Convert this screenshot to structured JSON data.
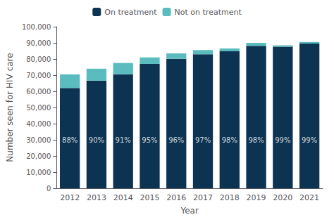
{
  "chart_data": {
    "type": "bar",
    "stacked": true,
    "categories": [
      "2012",
      "2013",
      "2014",
      "2015",
      "2016",
      "2017",
      "2018",
      "2019",
      "2020",
      "2021"
    ],
    "series": [
      {
        "name": "On treatment",
        "color": "#0d3352",
        "values": [
          62040,
          66600,
          70525,
          76950,
          80160,
          82935,
          84770,
          88200,
          87615,
          89595
        ]
      },
      {
        "name": "Not on treatment",
        "color": "#5bbcbf",
        "values": [
          8460,
          7400,
          7025,
          4050,
          3340,
          2565,
          1730,
          1800,
          885,
          905
        ]
      }
    ],
    "xlabel": "Year",
    "ylabel": "Number seen for HIV care",
    "ylim": [
      0,
      100000
    ],
    "yticks": [
      0,
      {
        "value": 10000,
        "label": "10,000"
      },
      {
        "value": 20000,
        "label": "20,000"
      },
      {
        "value": 30000,
        "label": "30,000"
      },
      {
        "value": 40000,
        "label": "40,000"
      },
      {
        "value": 50000,
        "label": "50,000"
      },
      {
        "value": 60000,
        "label": "60,000"
      },
      {
        "value": 70000,
        "label": "70,000"
      },
      {
        "value": 80000,
        "label": "80,000"
      },
      {
        "value": 90000,
        "label": "90,000"
      },
      {
        "value": 100000,
        "label": "100,000"
      }
    ],
    "grid": false,
    "legend": "top",
    "annotations": [
      {
        "x": "2012",
        "y": 30000,
        "text": "88%",
        "color": "white"
      },
      {
        "x": "2013",
        "y": 30000,
        "text": "90%",
        "color": "white"
      },
      {
        "x": "2014",
        "y": 30000,
        "text": "91%",
        "color": "white"
      },
      {
        "x": "2015",
        "y": 30000,
        "text": "95%",
        "color": "white"
      },
      {
        "x": "2016",
        "y": 30000,
        "text": "96%",
        "color": "white"
      },
      {
        "x": "2017",
        "y": 30000,
        "text": "97%",
        "color": "white"
      },
      {
        "x": "2018",
        "y": 30000,
        "text": "98%",
        "color": "white"
      },
      {
        "x": "2019",
        "y": 30000,
        "text": "98%",
        "color": "white"
      },
      {
        "x": "2020",
        "y": 30000,
        "text": "99%",
        "color": "white"
      },
      {
        "x": "2021",
        "y": 30000,
        "text": "99%",
        "color": "white"
      }
    ]
  }
}
